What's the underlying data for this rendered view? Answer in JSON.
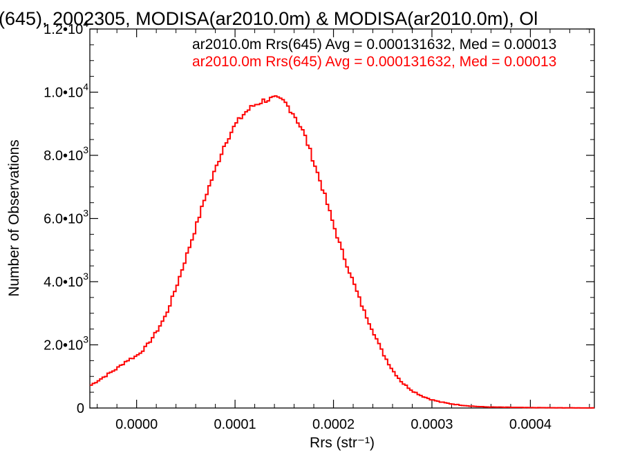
{
  "chart_data": {
    "type": "line",
    "title": "(645), 2002305, MODISA(ar2010.0m) & MODISA(ar2010.0m), Ol",
    "xlabel": "Rrs (str⁻¹)",
    "ylabel": "Number of Observations",
    "xlim": [
      -4.75e-05,
      0.000465
    ],
    "ylim": [
      0,
      12000
    ],
    "x_ticks": [
      {
        "value": 0.0,
        "label": "0.0000"
      },
      {
        "value": 0.0001,
        "label": "0.0001"
      },
      {
        "value": 0.0002,
        "label": "0.0002"
      },
      {
        "value": 0.0003,
        "label": "0.0003"
      },
      {
        "value": 0.0004,
        "label": "0.0004"
      }
    ],
    "y_ticks": [
      {
        "value": 0,
        "mantissa": "0",
        "exponent": ""
      },
      {
        "value": 2000,
        "mantissa": "2.0•10",
        "exponent": "3"
      },
      {
        "value": 4000,
        "mantissa": "4.0•10",
        "exponent": "3"
      },
      {
        "value": 6000,
        "mantissa": "6.0•10",
        "exponent": "3"
      },
      {
        "value": 8000,
        "mantissa": "8.0•10",
        "exponent": "3"
      },
      {
        "value": 10000,
        "mantissa": "1.0•10",
        "exponent": "4"
      },
      {
        "value": 12000,
        "mantissa": "1.2•10",
        "exponent": "4"
      }
    ],
    "legend": [
      {
        "text": "ar2010.0m Rrs(645) Avg = 0.000131632, Med = 0.00013",
        "color": "#000000"
      },
      {
        "text": "ar2010.0m Rrs(645) Avg = 0.000131632, Med = 0.00013",
        "color": "#ff0000"
      }
    ],
    "series": [
      {
        "color": "#ff0000",
        "points": [
          [
            -4.75e-05,
            700
          ],
          [
            -4e-05,
            850
          ],
          [
            -3e-05,
            1050
          ],
          [
            -2e-05,
            1250
          ],
          [
            -1e-05,
            1500
          ],
          [
            0.0,
            1650
          ],
          [
            1e-05,
            1950
          ],
          [
            2e-05,
            2400
          ],
          [
            3e-05,
            2950
          ],
          [
            4e-05,
            3800
          ],
          [
            5e-05,
            4750
          ],
          [
            6e-05,
            5700
          ],
          [
            7e-05,
            6700
          ],
          [
            8e-05,
            7550
          ],
          [
            9e-05,
            8400
          ],
          [
            0.0001,
            8950
          ],
          [
            0.00011,
            9350
          ],
          [
            0.00012,
            9600
          ],
          [
            0.00013,
            9750
          ],
          [
            0.00014,
            9800
          ],
          [
            0.00015,
            9700
          ],
          [
            0.00016,
            9300
          ],
          [
            0.00017,
            8700
          ],
          [
            0.00018,
            7800
          ],
          [
            0.00019,
            6850
          ],
          [
            0.0002,
            5800
          ],
          [
            0.00021,
            4850
          ],
          [
            0.00022,
            4000
          ],
          [
            0.00023,
            3150
          ],
          [
            0.00024,
            2450
          ],
          [
            0.00025,
            1750
          ],
          [
            0.00026,
            1200
          ],
          [
            0.00027,
            800
          ],
          [
            0.00028,
            550
          ],
          [
            0.00029,
            380
          ],
          [
            0.0003,
            260
          ],
          [
            0.00031,
            180
          ],
          [
            0.00032,
            130
          ],
          [
            0.00033,
            90
          ],
          [
            0.00034,
            60
          ],
          [
            0.00035,
            40
          ],
          [
            0.00036,
            30
          ],
          [
            0.00038,
            20
          ],
          [
            0.0004,
            12
          ],
          [
            0.00042,
            8
          ],
          [
            0.00044,
            5
          ],
          [
            0.000465,
            3
          ]
        ]
      }
    ],
    "grid": false
  }
}
